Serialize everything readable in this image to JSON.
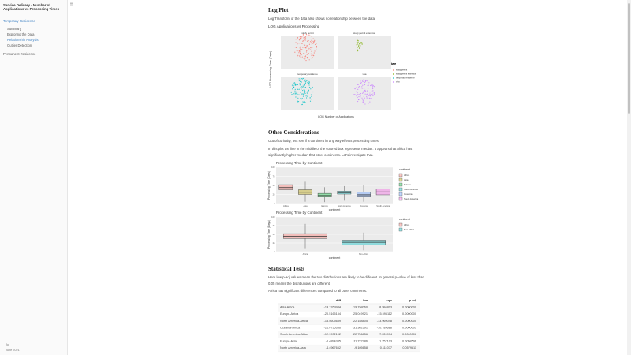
{
  "sidebar": {
    "title": "Service Delivery - Number of Applications vs Processing Times",
    "section1": "Temporary Residence",
    "subitems": [
      "Summary",
      "Exploring the Data",
      "Relationship Analysis",
      "Outlier Detection"
    ],
    "section2": "Permanent Residence",
    "footer": [
      "Jo",
      "June 2021"
    ]
  },
  "content": {
    "h_log": "Log Plot",
    "p_log": "Log Transform of the data also shows no relationship between the data.",
    "h_other": "Other Considerations",
    "p_other1": "Out of curiosity, lets see if a continent in any way effects processing times.",
    "p_other2": "In this plot the line in the middle of the colored box represents median. It appears that Africa has significantly higher median that other continents. Let's investigate that.",
    "h_stats": "Statistical Tests",
    "p_stats1": "Here low p-adj values mean the two distributions are likely to be different. In general p-value of less than 0.05 means the distributions are different.",
    "p_stats2": "Africa has significant differences compared to all other continents."
  },
  "chart_data": [
    {
      "type": "scatter",
      "title": "LOG Applications vs Processing",
      "x_label": "LOG Number of Applications",
      "y_label": "LOG Processing Time (Days)",
      "legend_title": "type",
      "series": [
        {
          "name": "study permit",
          "color": "#F8766D"
        },
        {
          "name": "study permit extension",
          "color": "#7CAE00"
        },
        {
          "name": "temporary residence",
          "color": "#00BFC4"
        },
        {
          "name": "visa",
          "color": "#C77CFF"
        }
      ]
    },
    {
      "type": "box",
      "title": "Processing Time by Continent",
      "x_label": "continent",
      "y_label": "Processing Time (Days)",
      "legend_title": "continent",
      "categories": [
        "Africa",
        "Asia",
        "Europe",
        "North America",
        "Oceania",
        "South America"
      ],
      "colors": [
        "#F8766D",
        "#B79F00",
        "#00BA38",
        "#00BFC4",
        "#619CFF",
        "#F564E3"
      ],
      "low": [
        10,
        5,
        4,
        8,
        5,
        6
      ],
      "q1": [
        38,
        25,
        18,
        26,
        18,
        24
      ],
      "median": [
        44,
        31,
        22,
        30,
        24,
        32
      ],
      "q3": [
        52,
        38,
        28,
        34,
        32,
        40
      ],
      "high": [
        80,
        60,
        45,
        48,
        50,
        62
      ],
      "ylim": [
        0,
        100
      ],
      "yticks": [
        0,
        25,
        50,
        75,
        100
      ]
    },
    {
      "type": "box",
      "title": "Processing Time by Continent",
      "x_label": "continent",
      "y_label": "Processing Time (Days)",
      "legend_title": "continent",
      "categories": [
        "Africa",
        "Non-Africa"
      ],
      "colors": [
        "#F8766D",
        "#00BFC4"
      ],
      "low": [
        10,
        4
      ],
      "q1": [
        38,
        20
      ],
      "median": [
        44,
        27
      ],
      "q3": [
        52,
        33
      ],
      "high": [
        80,
        55
      ],
      "ylim": [
        0,
        100
      ],
      "yticks": [
        0,
        25,
        50,
        75,
        100
      ]
    }
  ],
  "table": {
    "columns": [
      "diff",
      "lwr",
      "upr",
      "p adj"
    ],
    "rows": [
      [
        "Asia-Africa",
        "-14.1269984",
        "-19.158060",
        "-8.984803",
        "0.0000000"
      ],
      [
        "Europe-Africa",
        "-20.5165154",
        "-25.049921",
        "-15.596112",
        "0.0000000"
      ],
      [
        "North America-Africa",
        "-18.5605689",
        "-22.158805",
        "-13.969048",
        "0.0000000"
      ],
      [
        "Oceania-Africa",
        "-21.0735336",
        "-31.362391",
        "-10.785688",
        "0.0000001"
      ],
      [
        "South America-Africa",
        "-12.9932192",
        "-22.756856",
        "-7.224974",
        "0.0000006"
      ],
      [
        "Europe-Asia",
        "-6.4894385",
        "-11.722286",
        "-1.257103",
        "0.0058596"
      ],
      [
        "North America-Asia",
        "-4.4967652",
        "-9.105658",
        "0.111077",
        "0.0579811"
      ]
    ]
  }
}
